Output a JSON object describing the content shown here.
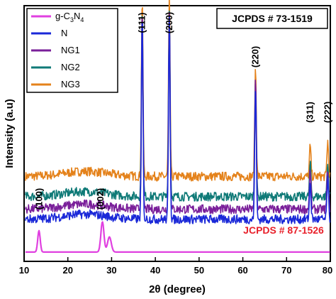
{
  "chart_data": {
    "type": "line",
    "xlabel": "2θ (degree)",
    "ylabel": "Intensity (a.u)",
    "xlim": [
      10,
      80
    ],
    "x_ticks": [
      "10",
      "20",
      "30",
      "40",
      "50",
      "60",
      "70",
      "80"
    ],
    "y_ticks_labeled": false,
    "legend_position": "top-left",
    "annotations": {
      "jcpds_top": "JCPDS # 73-1519",
      "jcpds_bottom": "JCPDS # 87-1526",
      "peak_labels": [
        {
          "text": "(100)",
          "x": 13.5
        },
        {
          "text": "(002)",
          "x": 27.5
        },
        {
          "text": "(111)",
          "x": 37.0
        },
        {
          "text": "(200)",
          "x": 43.2
        },
        {
          "text": "(220)",
          "x": 62.9
        },
        {
          "text": "(311)",
          "x": 75.4
        },
        {
          "text": "(222)",
          "x": 79.4
        }
      ]
    },
    "series": [
      {
        "name_parts": [
          "g-C",
          "3",
          "N",
          "4"
        ],
        "color": "#e040e0",
        "baseline": 0.02,
        "noise": 0.0,
        "peaks": [
          [
            13.4,
            0.085,
            0.4
          ],
          [
            27.9,
            0.12,
            0.5
          ],
          [
            29.5,
            0.06,
            0.6
          ]
        ]
      },
      {
        "name": "N",
        "color": "#1a28d8",
        "baseline": 0.15,
        "noise": 0.018,
        "peaks": [
          [
            37.0,
            0.82,
            0.25
          ],
          [
            43.2,
            0.82,
            0.25
          ],
          [
            62.9,
            0.53,
            0.25
          ],
          [
            75.4,
            0.15,
            0.25
          ],
          [
            79.4,
            0.16,
            0.25
          ]
        ]
      },
      {
        "name": "NG1",
        "color": "#7a1f9a",
        "baseline": 0.19,
        "noise": 0.018,
        "peaks": [
          [
            37.0,
            0.78,
            0.25
          ],
          [
            43.2,
            0.78,
            0.25
          ],
          [
            62.9,
            0.53,
            0.25
          ],
          [
            75.4,
            0.15,
            0.25
          ],
          [
            79.4,
            0.16,
            0.25
          ]
        ]
      },
      {
        "name": "NG2",
        "color": "#0f7a77",
        "baseline": 0.24,
        "noise": 0.018,
        "peaks": [
          [
            37.0,
            0.74,
            0.25
          ],
          [
            43.2,
            0.74,
            0.25
          ],
          [
            62.9,
            0.47,
            0.25
          ],
          [
            75.4,
            0.13,
            0.25
          ],
          [
            79.4,
            0.13,
            0.25
          ]
        ]
      },
      {
        "name": "NG3",
        "color": "#e4821b",
        "baseline": 0.32,
        "noise": 0.018,
        "peaks": [
          [
            37.0,
            0.71,
            0.25
          ],
          [
            43.2,
            0.71,
            0.25
          ],
          [
            62.9,
            0.43,
            0.25
          ],
          [
            75.4,
            0.12,
            0.25
          ],
          [
            79.4,
            0.14,
            0.25
          ]
        ]
      }
    ]
  }
}
